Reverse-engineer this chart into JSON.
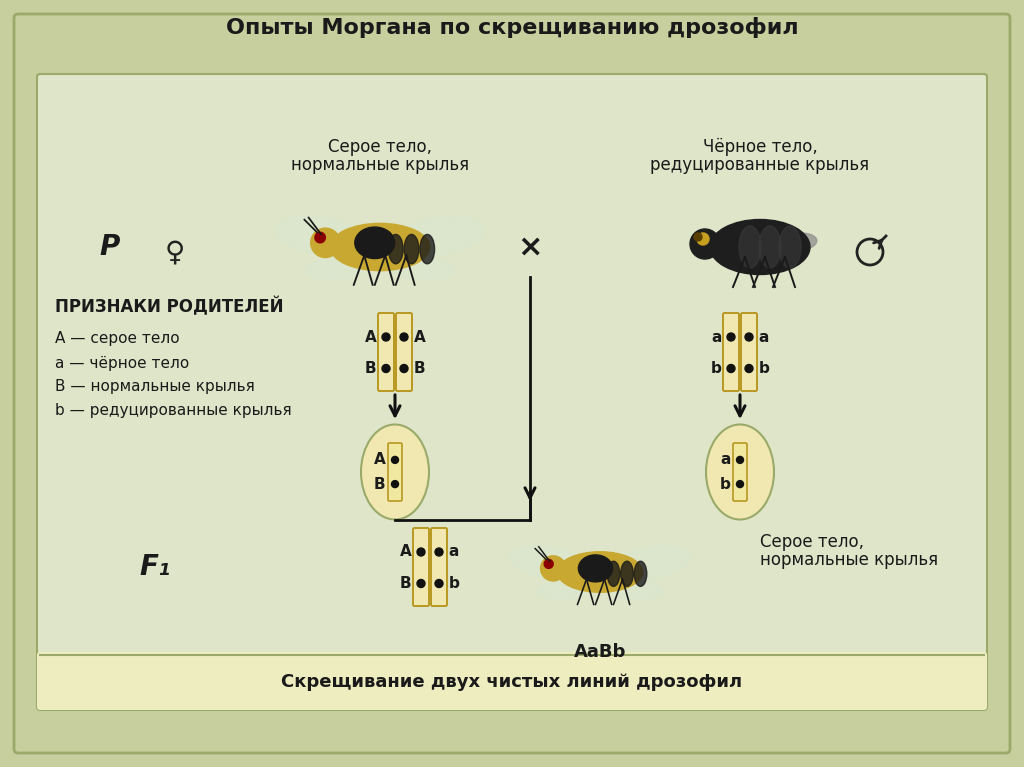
{
  "title": "Опыты Моргана по скрещиванию дрозофил",
  "subtitle": "Скрещивание двух чистых линий дрозофил",
  "bg_outer": "#c8cf9e",
  "bg_inner": "#dfe5c8",
  "bg_bottom_bar": "#eeedc0",
  "border_inner": "#9aaa6a",
  "title_color": "#1a1a1a",
  "text_color": "#1a1a1a",
  "chrom_fill": "#f0e8b0",
  "chrom_stroke": "#b89820",
  "chrom_dot": "#111111",
  "cell_fill": "#f0e8b0",
  "cell_stroke": "#9aaa6a",
  "arrow_color": "#111111",
  "label_P": "P",
  "label_F1": "F₁",
  "female_symbol": "♀",
  "male_symbol": "♂",
  "cross_symbol": "×",
  "female_fly_label_line1": "Серое тело,",
  "female_fly_label_line2": "нормальные крылья",
  "male_fly_label_line1": "Чёрное тело,",
  "male_fly_label_line2": "редуцированные крылья",
  "legend_title": "ПРИЗНАКИ РОДИТЕЛЕЙ",
  "legend_lines": [
    "A — серое тело",
    "a — чёрное тело",
    "B — нормальные крылья",
    "b — редуцированные крылья"
  ],
  "f1_label_line1": "Серое тело,",
  "f1_label_line2": "нормальные крылья",
  "f1_genotype": "AaBb"
}
